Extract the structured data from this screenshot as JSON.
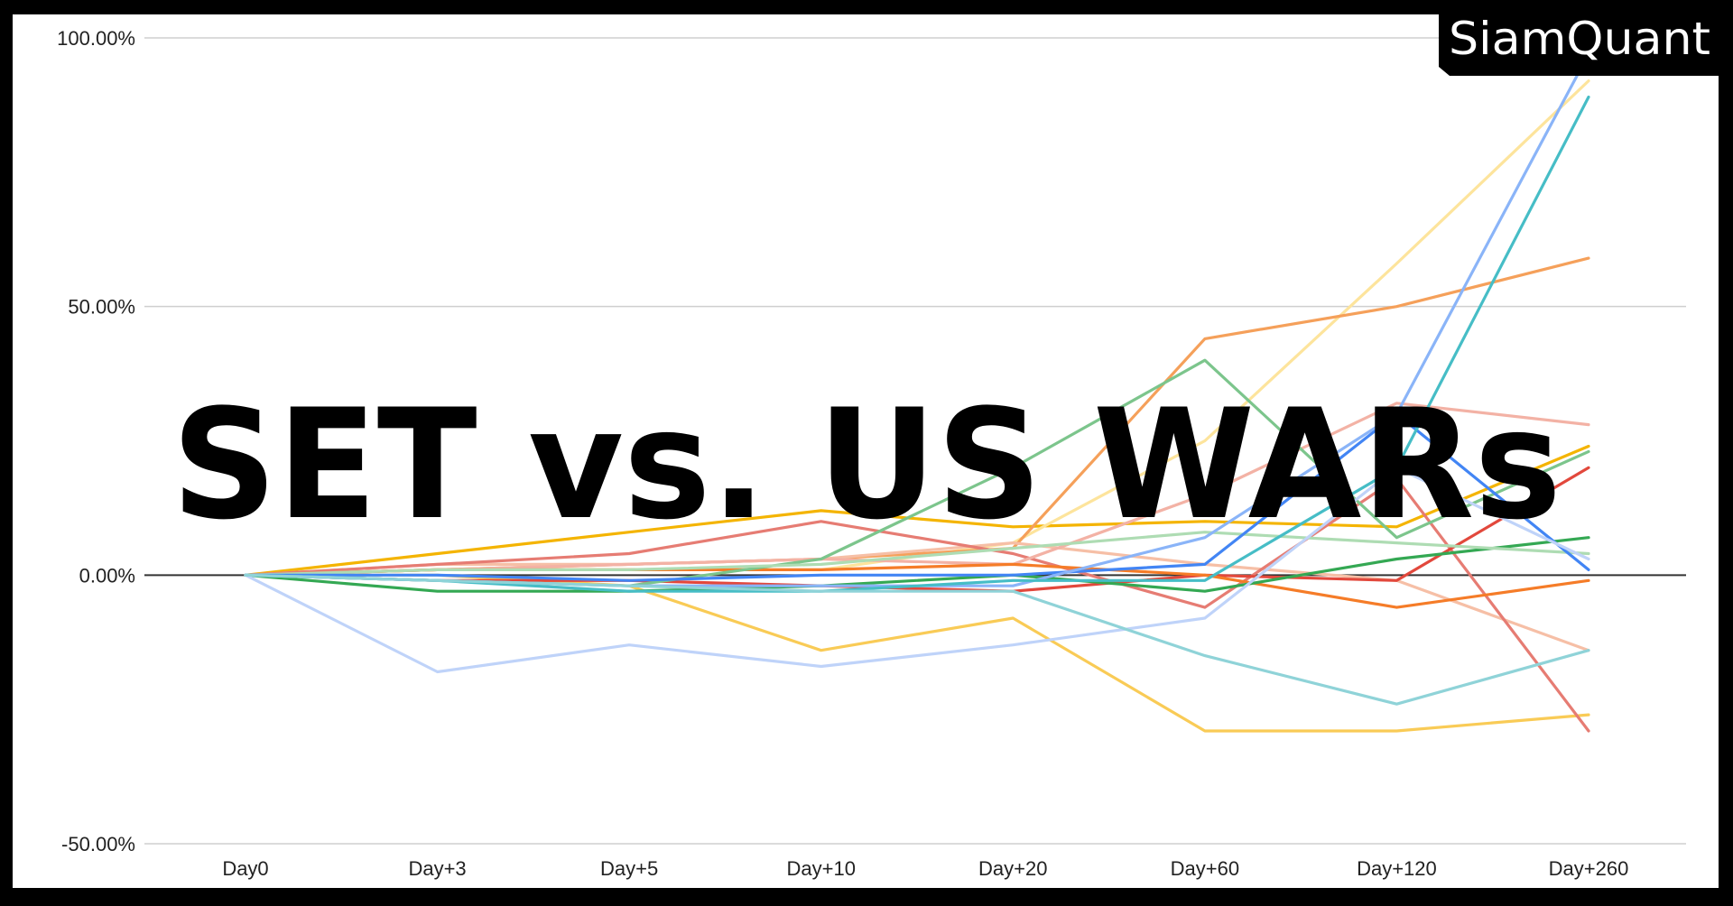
{
  "overlay_title": "SET vs. US WARs",
  "brand": {
    "name": "SiamQuant",
    "bg_color": "#000000",
    "text_color": "#ffffff"
  },
  "chart_data": {
    "type": "line",
    "categories": [
      "Day0",
      "Day+3",
      "Day+5",
      "Day+10",
      "Day+20",
      "Day+60",
      "Day+120",
      "Day+260"
    ],
    "y_ticks": [
      {
        "value": 100,
        "label": "100.00%"
      },
      {
        "value": 50,
        "label": "50.00%"
      },
      {
        "value": 0,
        "label": "0.00%"
      },
      {
        "value": -50,
        "label": "-50.00%"
      }
    ],
    "ylim": [
      -50,
      100
    ],
    "grid": true,
    "legend": "none",
    "series": [
      {
        "color": "#F4B400",
        "values": [
          0,
          4,
          8,
          12,
          9,
          10,
          9,
          24
        ]
      },
      {
        "color": "#F9CB56",
        "values": [
          0,
          0,
          -2,
          -14,
          -8,
          -29,
          -29,
          -26
        ]
      },
      {
        "color": "#FDE49C",
        "values": [
          0,
          1,
          1,
          1,
          6,
          25,
          58,
          92
        ]
      },
      {
        "color": "#F5A05A",
        "values": [
          0,
          1,
          2,
          3,
          5,
          44,
          50,
          59
        ]
      },
      {
        "color": "#F6BFA6",
        "values": [
          0,
          2,
          2,
          3,
          6,
          2,
          -1,
          -14
        ]
      },
      {
        "color": "#E67C73",
        "values": [
          0,
          2,
          4,
          10,
          4,
          -6,
          18,
          -29
        ]
      },
      {
        "color": "#F3B2A5",
        "values": [
          0,
          1,
          2,
          3,
          2,
          15,
          32,
          28
        ]
      },
      {
        "color": "#E2483C",
        "values": [
          0,
          -1,
          -1,
          -2,
          -3,
          0,
          -1,
          20
        ]
      },
      {
        "color": "#F57C28",
        "values": [
          0,
          1,
          1,
          1,
          2,
          0,
          -6,
          -1
        ]
      },
      {
        "color": "#34A853",
        "values": [
          0,
          -3,
          -3,
          -2,
          0,
          -3,
          3,
          7
        ]
      },
      {
        "color": "#7CC58C",
        "values": [
          0,
          -1,
          -2,
          3,
          20,
          40,
          7,
          23
        ]
      },
      {
        "color": "#AEDCB3",
        "values": [
          0,
          1,
          1,
          2,
          5,
          8,
          6,
          4
        ]
      },
      {
        "color": "#4285F4",
        "values": [
          0,
          0,
          -1,
          0,
          0,
          2,
          30,
          1
        ]
      },
      {
        "color": "#8AB4F8",
        "values": [
          0,
          -1,
          -2,
          -2,
          -2,
          7,
          30,
          97
        ]
      },
      {
        "color": "#BFD3F9",
        "values": [
          0,
          -18,
          -13,
          -17,
          -13,
          -8,
          20,
          3
        ]
      },
      {
        "color": "#46BDC6",
        "values": [
          0,
          -1,
          -3,
          -3,
          -1,
          -1,
          20,
          89
        ]
      },
      {
        "color": "#8FD3D8",
        "values": [
          0,
          -1,
          -2,
          -3,
          -3,
          -15,
          -24,
          -14
        ]
      }
    ]
  }
}
